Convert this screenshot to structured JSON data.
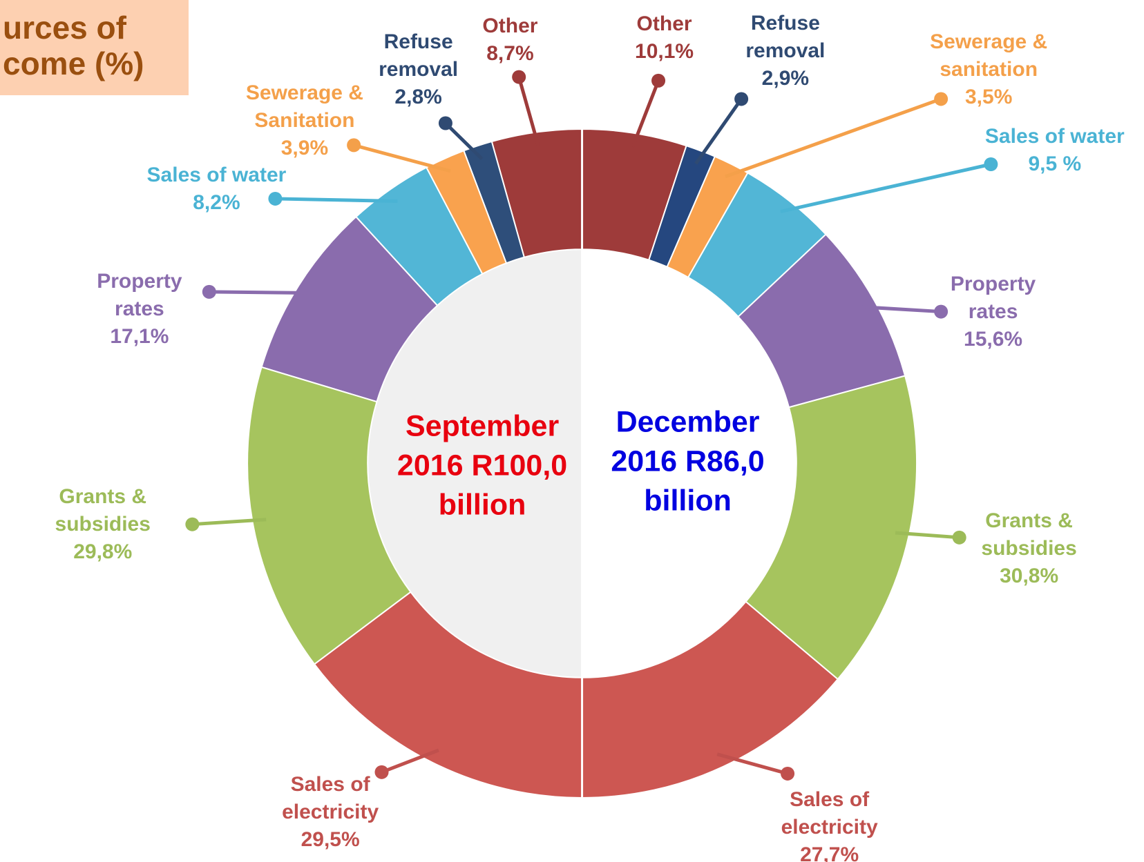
{
  "title": "urces of come (%)",
  "chart_data": [
    {
      "type": "pie",
      "center_label": "September 2016 R100,0 billion",
      "center_color": "#e8000f",
      "categories": [
        "Other",
        "Refuse removal",
        "Sewerage & Sanitation",
        "Sales of water",
        "Property rates",
        "Grants & subsidies",
        "Sales of electricity"
      ],
      "values": [
        8.7,
        2.8,
        3.9,
        8.2,
        17.1,
        29.8,
        29.5
      ],
      "value_labels": [
        "8,7%",
        "2,8%",
        "3,9%",
        "8,2%",
        "17,1%",
        "29,8%",
        "29,5%"
      ],
      "colors": [
        "#9e3b3a",
        "#2e4e7a",
        "#f9a24e",
        "#52b6d6",
        "#8a6cad",
        "#a6c45e",
        "#cd5752"
      ]
    },
    {
      "type": "pie",
      "center_label": "December 2016 R86,0 billion",
      "center_color": "#0000e0",
      "categories": [
        "Other",
        "Refuse removal",
        "Sewerage & sanitation",
        "Sales of water",
        "Property rates",
        "Grants & subsidies",
        "Sales of electricity"
      ],
      "values": [
        10.1,
        2.9,
        3.5,
        9.5,
        15.6,
        30.8,
        27.7
      ],
      "value_labels": [
        "10,1%",
        "2,9%",
        "3,5%",
        "9,5  %",
        "15,6%",
        "30,8%",
        "27,7%"
      ],
      "colors": [
        "#9e3b3a",
        "#25477f",
        "#f9a24e",
        "#52b6d6",
        "#8a6cad",
        "#a6c45e",
        "#cd5752"
      ]
    }
  ]
}
